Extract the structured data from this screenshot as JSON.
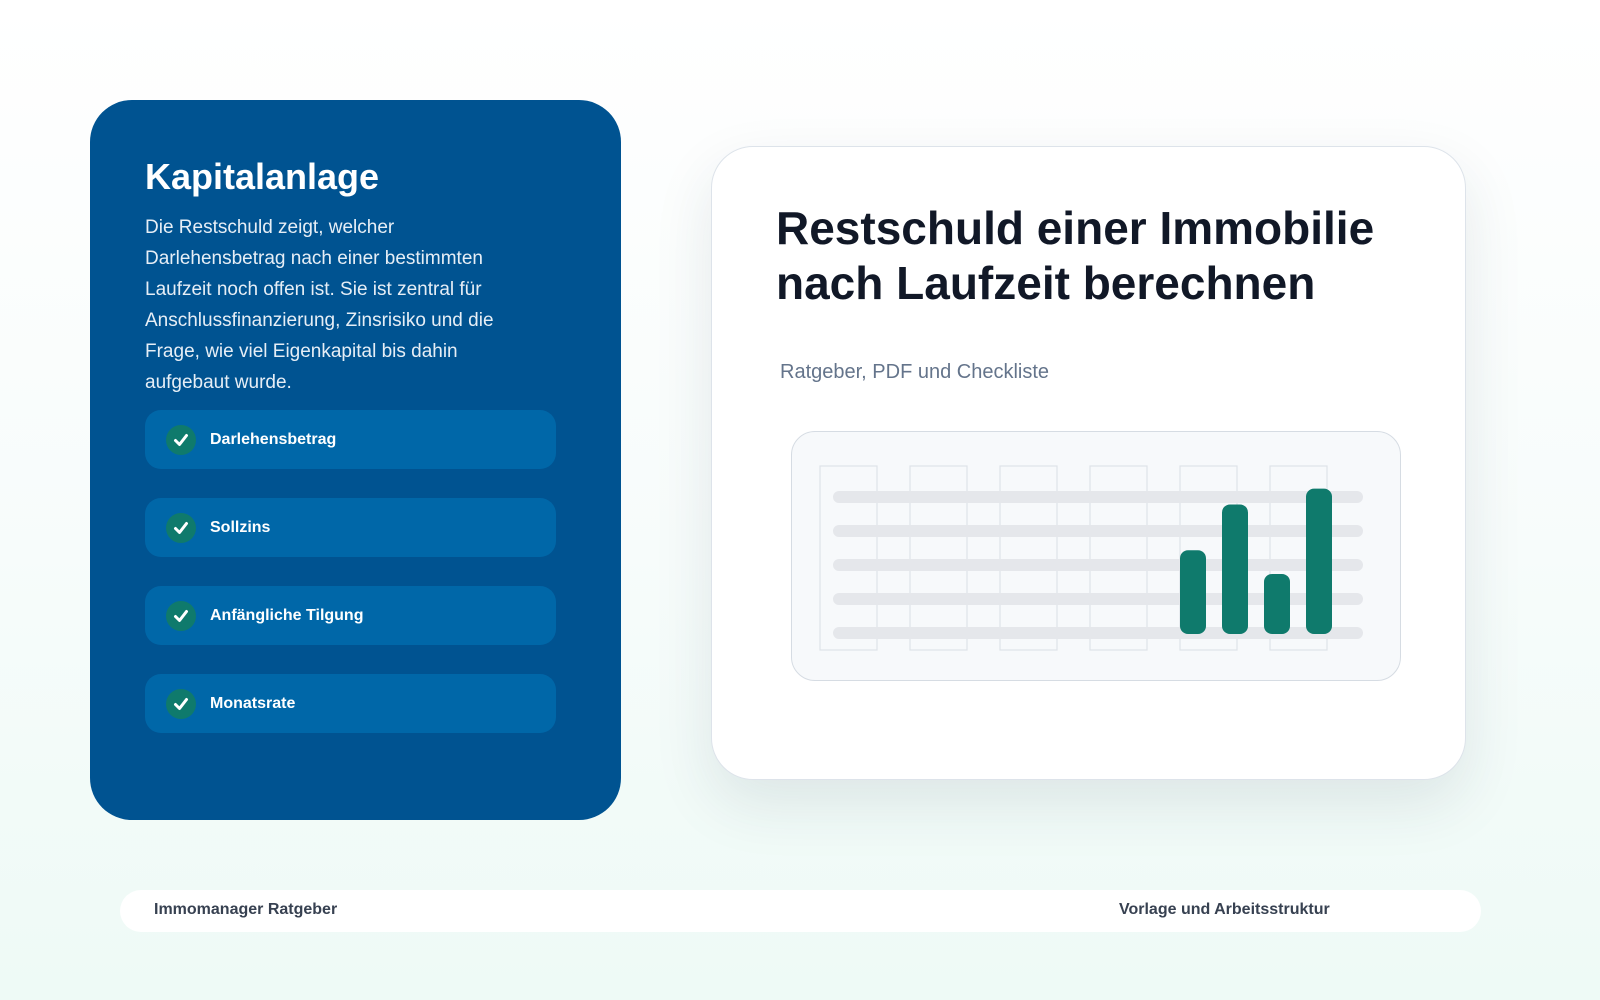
{
  "side": {
    "title": "Kapitalanlage",
    "description": "Die Restschuld zeigt, welcher Darlehensbetrag nach einer bestimmten Laufzeit noch offen ist. Sie ist zentral für Anschlussfinanzierung, Zinsrisiko und die Frage, wie viel Eigenkapital bis dahin aufgebaut wurde.",
    "features": [
      {
        "label": "Darlehensbetrag",
        "icon": "check-icon"
      },
      {
        "label": "Sollzins",
        "icon": "check-icon"
      },
      {
        "label": "Anfängliche Tilgung",
        "icon": "check-icon"
      },
      {
        "label": "Monatsrate",
        "icon": "check-icon"
      }
    ]
  },
  "main": {
    "title": "Restschuld einer Immobilie nach Laufzeit berechnen",
    "subtitle": "Ratgeber, PDF und Checkliste",
    "illustration": {
      "icon": "spreadsheet-chart-illustration",
      "bar_levels": [
        0.53,
        0.82,
        0.38,
        0.92
      ]
    }
  },
  "footer": {
    "left": "Immomanager Ratgeber",
    "right": "Vorlage und Arbeitsstruktur"
  },
  "colors": {
    "side_card": "#005391",
    "feature_pill": "#0067a8",
    "accent_green": "#0f7a6c",
    "title_dark": "#111827",
    "subtitle_gray": "#64748b"
  }
}
